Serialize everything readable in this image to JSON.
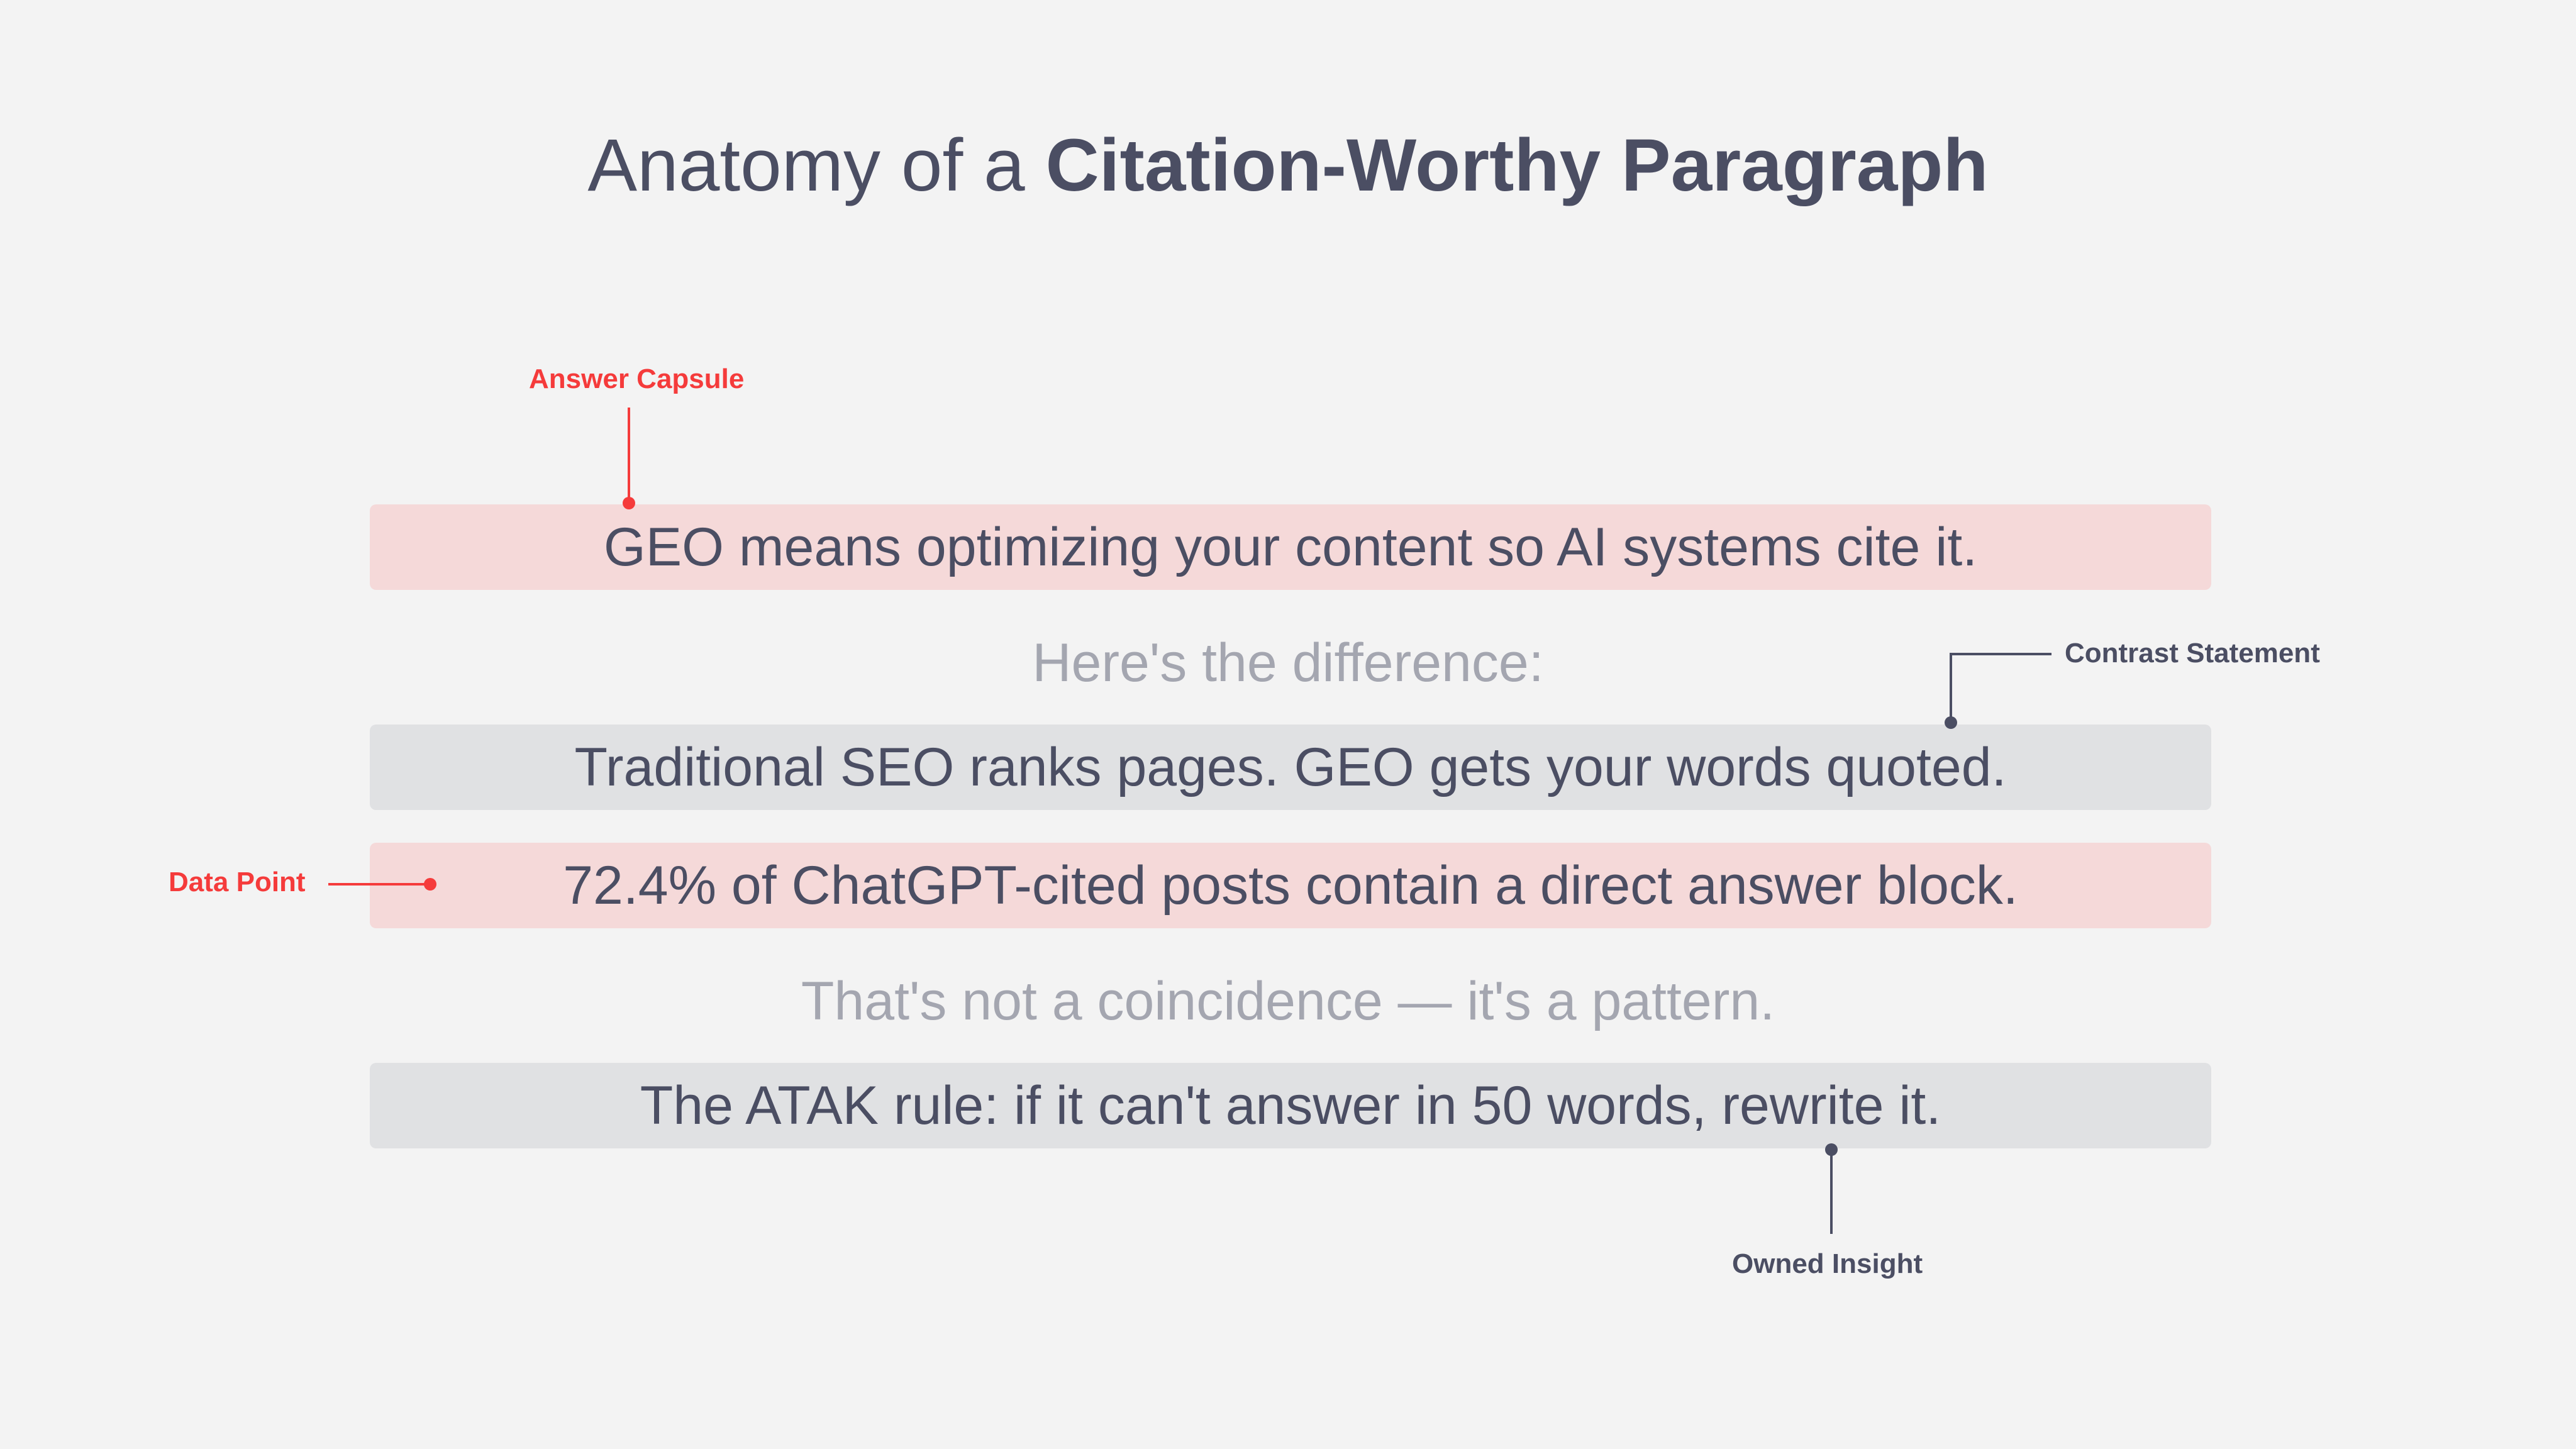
{
  "title": {
    "regular": "Anatomy of a ",
    "bold": "Citation-Worthy Paragraph"
  },
  "lines": [
    {
      "text": "GEO means optimizing your content so AI systems cite it.",
      "style": "highlight-pink"
    },
    {
      "text": "Here's the difference:",
      "style": "muted"
    },
    {
      "text": "Traditional SEO ranks pages. GEO gets your words quoted.",
      "style": "highlight-gray"
    },
    {
      "text": "72.4% of ChatGPT-cited posts contain a direct answer block.",
      "style": "highlight-pink"
    },
    {
      "text": "That's not a coincidence — it's a pattern.",
      "style": "muted"
    },
    {
      "text": "The ATAK rule: if it can't answer in 50 words, rewrite it.",
      "style": "highlight-gray"
    }
  ],
  "annotations": {
    "answer_capsule": "Answer Capsule",
    "contrast_statement": "Contrast Statement",
    "data_point": "Data Point",
    "owned_insight": "Owned Insight"
  },
  "colors": {
    "background": "#f3f3f3",
    "pink_highlight": "#f5d9d9",
    "gray_highlight": "#e0e1e3",
    "text": "#4b4e63",
    "accent_red": "#f53b3b",
    "muted_text": "#a4a6b0"
  }
}
